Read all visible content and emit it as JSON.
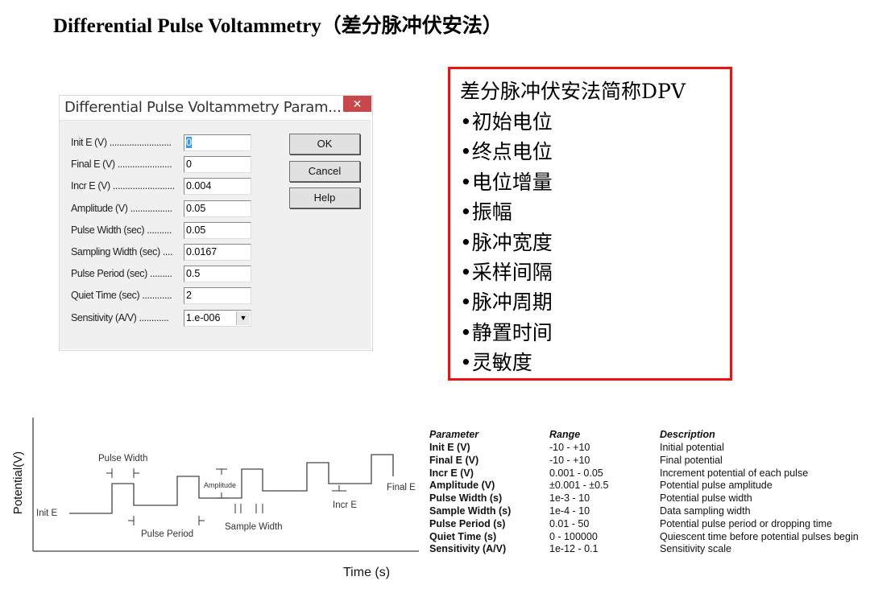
{
  "page_title": "Differential Pulse Voltammetry（差分脉冲伏安法）",
  "dialog": {
    "title": "Differential Pulse Voltammetry Param...",
    "close_icon": "close-icon",
    "fields": [
      {
        "label": "Init E (V) .........................",
        "value": "0"
      },
      {
        "label": "Final E (V) ......................",
        "value": "0"
      },
      {
        "label": "Incr E (V) .........................",
        "value": "0.004"
      },
      {
        "label": "Amplitude (V) .................",
        "value": "0.05"
      },
      {
        "label": "Pulse Width (sec) ..........",
        "value": "0.05"
      },
      {
        "label": "Sampling Width (sec) ....",
        "value": "0.0167"
      },
      {
        "label": "Pulse Period (sec) .........",
        "value": "0.5"
      },
      {
        "label": "Quiet Time (sec) ............",
        "value": "2"
      },
      {
        "label": "Sensitivity (A/V) ............",
        "value": "1.e-006"
      }
    ],
    "buttons": {
      "ok": "OK",
      "cancel": "Cancel",
      "help": "Help"
    }
  },
  "summary_box": {
    "heading": "差分脉冲伏安法简称DPV",
    "items": [
      "•初始电位",
      "•终点电位",
      "•电位增量",
      "•振幅",
      "•脉冲宽度",
      "•采样间隔",
      "•脉冲周期",
      "•静置时间",
      "•灵敏度"
    ],
    "border_color": "#ee1111"
  },
  "diagram": {
    "y_axis_label": "Potential(V)",
    "x_axis_label": "Time (s)",
    "labels": {
      "init_e": "Init E",
      "pulse_width": "Pulse Width",
      "pulse_period": "Pulse Period",
      "amplitude": "Amplitude",
      "sample_width": "Sample Width",
      "incr_e": "Incr E",
      "final_e": "Final E"
    }
  },
  "param_table": {
    "headers": [
      "Parameter",
      "Range",
      "Description"
    ],
    "rows": [
      [
        "Init E (V)",
        "-10   -   +10",
        "Initial potential"
      ],
      [
        "Final E (V)",
        "-10   -   +10",
        "Final potential"
      ],
      [
        "Incr E (V)",
        "0.001   -   0.05",
        "Increment potential of each pulse"
      ],
      [
        "Amplitude (V)",
        "±0.001   -   ±0.5",
        "Potential pulse amplitude"
      ],
      [
        "Pulse Width (s)",
        "1e-3   -   10",
        "Potential pulse width"
      ],
      [
        "Sample Width (s)",
        "1e-4   -   10",
        "Data sampling width"
      ],
      [
        "Pulse Period (s)",
        "0.01   -   50",
        "Potential pulse period or dropping time"
      ],
      [
        "Quiet Time (s)",
        "0   -   100000",
        "Quiescent time before potential pulses begin"
      ],
      [
        "Sensitivity (A/V)",
        "1e-12   -   0.1",
        "Sensitivity scale"
      ]
    ]
  }
}
